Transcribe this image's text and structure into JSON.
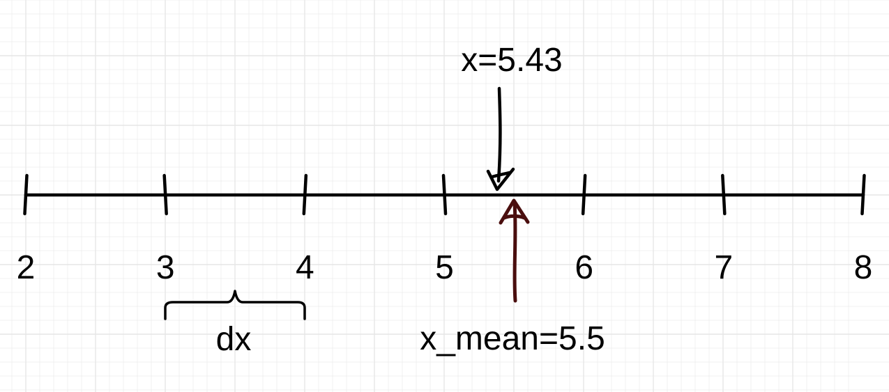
{
  "diagram": {
    "axis": {
      "min": 2,
      "max": 8,
      "ticks": [
        2,
        3,
        4,
        5,
        6,
        7,
        8
      ],
      "tick_labels": [
        "2",
        "3",
        "4",
        "5",
        "6",
        "7",
        "8"
      ]
    },
    "grid": true,
    "colors": {
      "background": "#ffffff",
      "grid": "#e6e6e6",
      "ink": "#000000",
      "mean_arrow": "#4a0e0e"
    },
    "brace": {
      "from": 3,
      "to": 4,
      "label": "dx"
    },
    "x_marker": {
      "value": 5.43,
      "label": "x=5.43",
      "direction": "down"
    },
    "mean_marker": {
      "value": 5.5,
      "label": "x_mean=5.5",
      "direction": "up"
    }
  }
}
